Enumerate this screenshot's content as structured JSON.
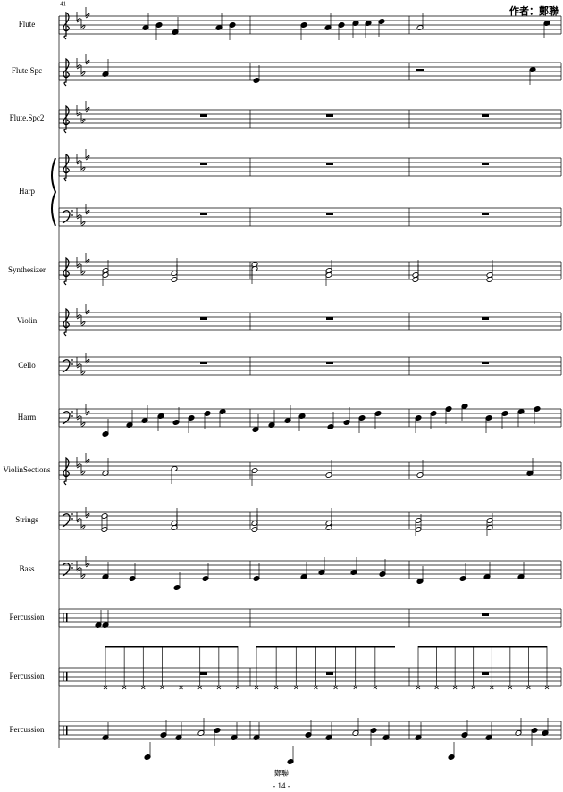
{
  "header": {
    "measure_number": "41",
    "author": "作者：鄭聯"
  },
  "staves": [
    {
      "label": "Flute"
    },
    {
      "label": "Flute.Spc"
    },
    {
      "label": "Flute.Spc2"
    },
    {
      "label": "Harp"
    },
    {
      "label": "Synthesizer"
    },
    {
      "label": "Violin"
    },
    {
      "label": "Cello"
    },
    {
      "label": "Harm"
    },
    {
      "label": "ViolinSections"
    },
    {
      "label": "Strings"
    },
    {
      "label": "Bass"
    },
    {
      "label": "Percussion"
    },
    {
      "label": "Percussion"
    },
    {
      "label": "Percussion"
    }
  ],
  "footer": {
    "signature": "鄭聯",
    "page": "- 14 -"
  }
}
